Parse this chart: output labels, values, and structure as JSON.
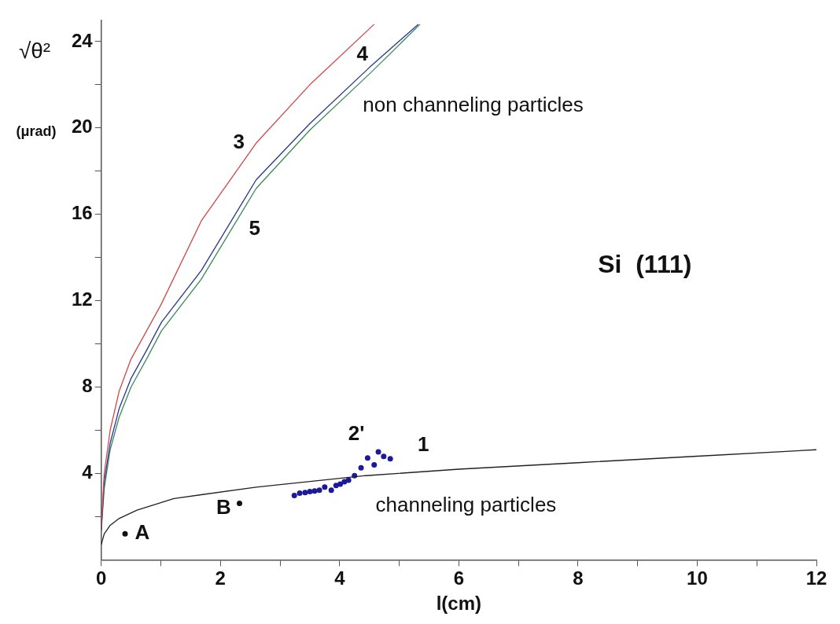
{
  "chart_data": {
    "type": "line",
    "xlabel": "l(cm)",
    "ylabel": "√θ² (μrad)",
    "xlim": [
      0,
      12
    ],
    "ylim": [
      0,
      25
    ],
    "xticks": [
      0,
      {
        "value": 1,
        "label": null
      },
      2,
      {
        "value": 3,
        "label": null
      },
      4,
      {
        "value": 5,
        "label": null
      },
      6,
      {
        "value": 7,
        "label": null
      },
      8,
      {
        "value": 9,
        "label": null
      },
      10,
      {
        "value": 11,
        "label": null
      },
      12
    ],
    "yticks": [
      {
        "value": 2,
        "label": null
      },
      4,
      {
        "value": 6,
        "label": null
      },
      8,
      {
        "value": 10,
        "label": null
      },
      12,
      {
        "value": 14,
        "label": null
      },
      16,
      {
        "value": 18,
        "label": null
      },
      20,
      {
        "value": 22,
        "label": null
      },
      24
    ],
    "grid": false,
    "legend": false,
    "series": [
      {
        "name": "1",
        "type": "line",
        "color": "#222222",
        "marker": "none",
        "x": [
          0,
          0.05,
          0.15,
          0.29,
          0.6,
          1.22,
          2.6,
          4.44,
          6,
          8,
          10,
          12
        ],
        "values": [
          0.7,
          1.2,
          1.6,
          1.9,
          2.3,
          2.84,
          3.37,
          3.9,
          4.2,
          4.5,
          4.8,
          5.1
        ]
      },
      {
        "name": "3",
        "type": "line",
        "color": "#d04848",
        "marker": "none",
        "x": [
          0,
          0.05,
          0.15,
          0.3,
          0.5,
          0.76,
          1.0,
          1.68,
          2.6,
          3.5,
          4.58
        ],
        "values": [
          1.5,
          4,
          6,
          7.8,
          9.3,
          10.6,
          11.8,
          15.7,
          19.3,
          22,
          24.8
        ]
      },
      {
        "name": "4",
        "type": "line",
        "color": "#2a3590",
        "marker": "none",
        "x": [
          0,
          0.05,
          0.15,
          0.3,
          0.5,
          0.76,
          1.01,
          1.68,
          2.6,
          3.5,
          4.5,
          5.32
        ],
        "values": [
          1.4,
          3.6,
          5.4,
          7,
          8.4,
          9.7,
          11.0,
          13.4,
          17.6,
          20.2,
          22.8,
          24.8
        ]
      },
      {
        "name": "5",
        "type": "line",
        "color": "#3a8a5a",
        "marker": "none",
        "x": [
          0,
          0.05,
          0.15,
          0.3,
          0.5,
          0.76,
          1.01,
          1.68,
          2.6,
          3.5,
          4.5,
          5.35
        ],
        "values": [
          1.3,
          3.3,
          5.1,
          6.6,
          8.0,
          9.3,
          10.6,
          13.0,
          17.2,
          19.9,
          22.5,
          24.8
        ]
      },
      {
        "name": "2'",
        "type": "scatter",
        "color": "#1a1a9a",
        "marker": "circle",
        "x": [
          3.24,
          3.33,
          3.42,
          3.5,
          3.58,
          3.66,
          3.75,
          3.86,
          3.94,
          4.01,
          4.08,
          4.15,
          4.25,
          4.36,
          4.47,
          4.58,
          4.65,
          4.74,
          4.85
        ],
        "values": [
          2.98,
          3.09,
          3.12,
          3.16,
          3.19,
          3.23,
          3.37,
          3.23,
          3.44,
          3.51,
          3.62,
          3.69,
          3.9,
          4.26,
          4.72,
          4.4,
          5.0,
          4.79,
          4.68
        ]
      },
      {
        "name": "A",
        "type": "scatter",
        "color": "#111111",
        "marker": "circle",
        "x": [
          0.4
        ],
        "values": [
          1.21
        ]
      },
      {
        "name": "B",
        "type": "scatter",
        "color": "#111111",
        "marker": "circle",
        "x": [
          2.32
        ],
        "values": [
          2.62
        ]
      }
    ],
    "annotations": [
      "non channeling particles",
      "channeling particles",
      "Si  (111)"
    ]
  }
}
